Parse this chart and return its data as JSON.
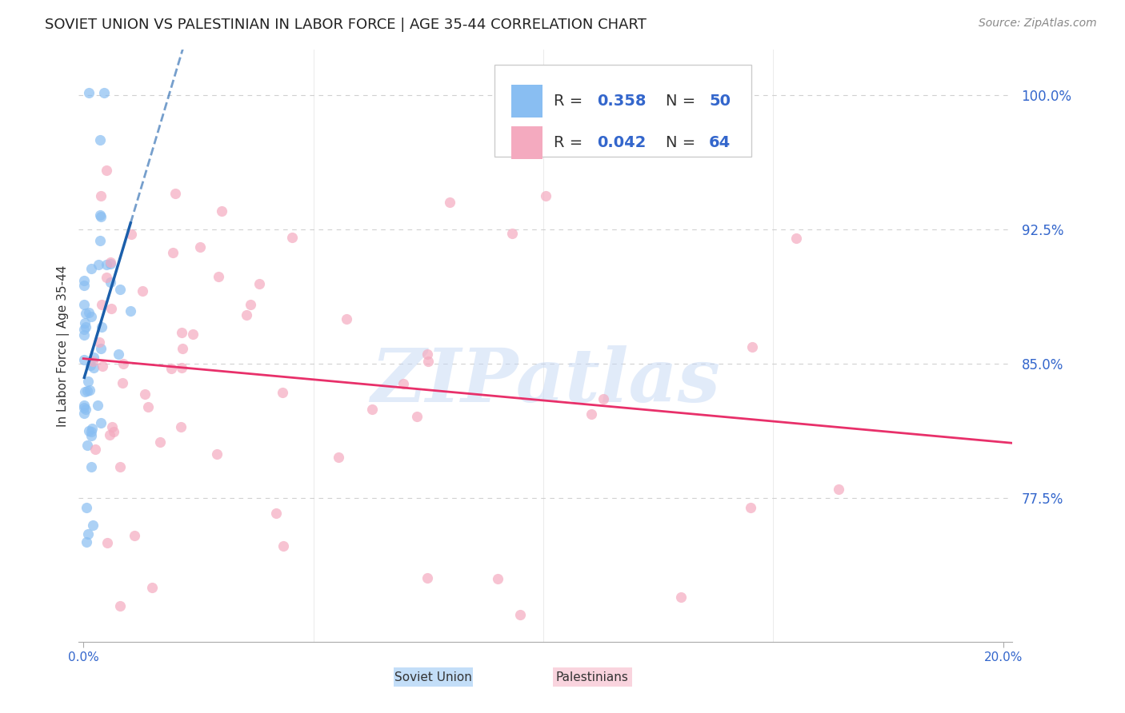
{
  "title": "SOVIET UNION VS PALESTINIAN IN LABOR FORCE | AGE 35-44 CORRELATION CHART",
  "source": "Source: ZipAtlas.com",
  "ylabel": "In Labor Force | Age 35-44",
  "y_ticks": [
    0.775,
    0.85,
    0.925,
    1.0
  ],
  "y_tick_labels": [
    "77.5%",
    "85.0%",
    "92.5%",
    "100.0%"
  ],
  "x_range": [
    -0.001,
    0.202
  ],
  "y_range": [
    0.695,
    1.025
  ],
  "legend_r1": "0.358",
  "legend_n1": "50",
  "legend_r2": "0.042",
  "legend_n2": "64",
  "soviet_color": "#89BEF2",
  "palestinian_color": "#F4AABF",
  "trendline_soviet_color": "#1B5FAB",
  "trendline_palest_color": "#E8306A",
  "background_color": "#FFFFFF",
  "watermark": "ZIPatlas",
  "grid_color": "#D0D0D0",
  "title_fontsize": 13,
  "label_fontsize": 11
}
